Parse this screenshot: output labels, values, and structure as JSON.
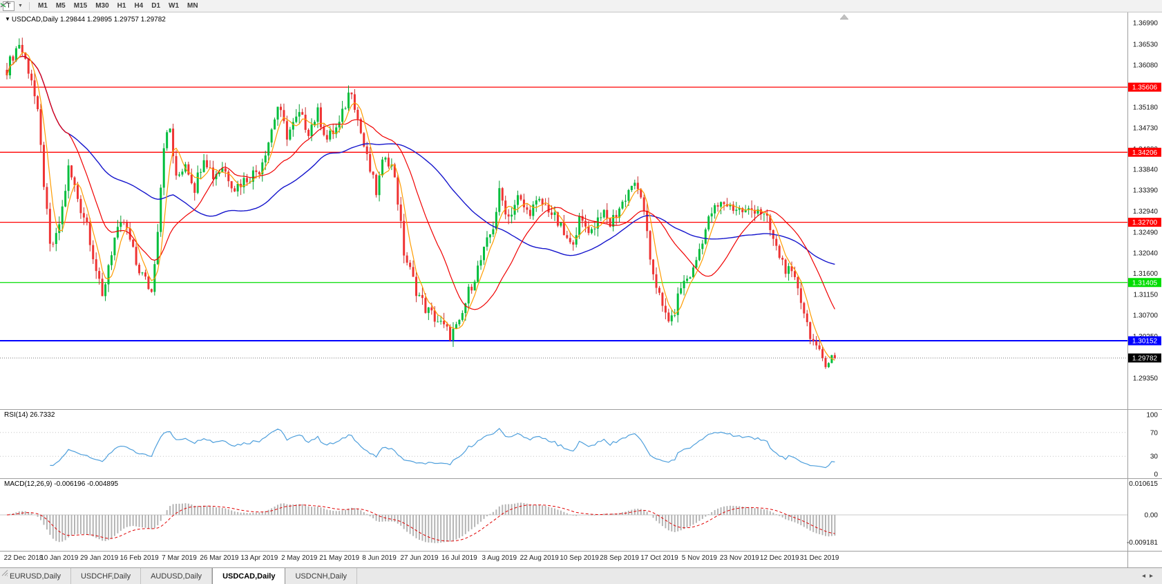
{
  "toolbar": {
    "text_tool_label": "T",
    "timeframes": [
      "M1",
      "M5",
      "M15",
      "M30",
      "H1",
      "H4",
      "D1",
      "W1",
      "MN"
    ]
  },
  "chart_header": {
    "dropdown_glyph": "▼",
    "symbol_title": "USDCAD,Daily",
    "ohlc_text": "1.29844 1.29895 1.29757 1.29782"
  },
  "chart_data": {
    "type": "candlestick",
    "symbol": "USDCAD",
    "timeframe": "Daily",
    "open": 1.29844,
    "high": 1.29895,
    "low": 1.29757,
    "close": 1.29782,
    "num_candles": 270,
    "close_anchors": [
      [
        0,
        1.36
      ],
      [
        2,
        1.363
      ],
      [
        4,
        1.3655
      ],
      [
        6,
        1.3618
      ],
      [
        8,
        1.358
      ],
      [
        10,
        1.35
      ],
      [
        12,
        1.3355
      ],
      [
        14,
        1.3215
      ],
      [
        16,
        1.3235
      ],
      [
        18,
        1.33
      ],
      [
        20,
        1.3385
      ],
      [
        22,
        1.3345
      ],
      [
        24,
        1.33
      ],
      [
        26,
        1.327
      ],
      [
        28,
        1.32
      ],
      [
        30,
        1.3135
      ],
      [
        31,
        1.3105
      ],
      [
        33,
        1.318
      ],
      [
        35,
        1.3235
      ],
      [
        38,
        1.327
      ],
      [
        40,
        1.323
      ],
      [
        42,
        1.318
      ],
      [
        45,
        1.3145
      ],
      [
        47,
        1.312
      ],
      [
        49,
        1.326
      ],
      [
        51,
        1.344
      ],
      [
        53,
        1.347
      ],
      [
        55,
        1.336
      ],
      [
        58,
        1.34
      ],
      [
        61,
        1.3345
      ],
      [
        64,
        1.3415
      ],
      [
        67,
        1.337
      ],
      [
        70,
        1.339
      ],
      [
        74,
        1.3345
      ],
      [
        78,
        1.3365
      ],
      [
        82,
        1.3385
      ],
      [
        85,
        1.3445
      ],
      [
        88,
        1.352
      ],
      [
        91,
        1.3458
      ],
      [
        95,
        1.35
      ],
      [
        98,
        1.3468
      ],
      [
        101,
        1.3505
      ],
      [
        104,
        1.3448
      ],
      [
        108,
        1.348
      ],
      [
        111,
        1.3545
      ],
      [
        112,
        1.3558
      ],
      [
        114,
        1.3492
      ],
      [
        117,
        1.3405
      ],
      [
        120,
        1.3335
      ],
      [
        123,
        1.342
      ],
      [
        126,
        1.3372
      ],
      [
        129,
        1.3205
      ],
      [
        133,
        1.3125
      ],
      [
        136,
        1.3085
      ],
      [
        140,
        1.3058
      ],
      [
        144,
        1.3028
      ],
      [
        147,
        1.3048
      ],
      [
        150,
        1.312
      ],
      [
        154,
        1.3188
      ],
      [
        158,
        1.3262
      ],
      [
        160,
        1.3332
      ],
      [
        163,
        1.3282
      ],
      [
        166,
        1.3322
      ],
      [
        169,
        1.3292
      ],
      [
        173,
        1.3312
      ],
      [
        176,
        1.33
      ],
      [
        180,
        1.3256
      ],
      [
        183,
        1.3218
      ],
      [
        186,
        1.3272
      ],
      [
        190,
        1.3252
      ],
      [
        193,
        1.3292
      ],
      [
        196,
        1.3266
      ],
      [
        200,
        1.3312
      ],
      [
        203,
        1.3352
      ],
      [
        206,
        1.333
      ],
      [
        209,
        1.3192
      ],
      [
        213,
        1.3082
      ],
      [
        216,
        1.3056
      ],
      [
        219,
        1.3132
      ],
      [
        223,
        1.3166
      ],
      [
        226,
        1.3236
      ],
      [
        229,
        1.3292
      ],
      [
        233,
        1.3312
      ],
      [
        236,
        1.3302
      ],
      [
        240,
        1.3292
      ],
      [
        244,
        1.3302
      ],
      [
        247,
        1.3272
      ],
      [
        250,
        1.3212
      ],
      [
        253,
        1.3172
      ],
      [
        257,
        1.3132
      ],
      [
        260,
        1.3052
      ],
      [
        263,
        1.2992
      ],
      [
        266,
        1.2972
      ],
      [
        269,
        1.29782
      ]
    ],
    "x_labels": [
      "22 Dec 2018",
      "10 Jan 2019",
      "29 Jan 2019",
      "16 Feb 2019",
      "7 Mar 2019",
      "26 Mar 2019",
      "13 Apr 2019",
      "2 May 2019",
      "21 May 2019",
      "8 Jun 2019",
      "27 Jun 2019",
      "16 Jul 2019",
      "3 Aug 2019",
      "22 Aug 2019",
      "10 Sep 2019",
      "28 Sep 2019",
      "17 Oct 2019",
      "5 Nov 2019",
      "23 Nov 2019",
      "12 Dec 2019",
      "31 Dec 2019"
    ],
    "y_ticks": [
      "1.36990",
      "1.36530",
      "1.36080",
      "1.35630",
      "1.35180",
      "1.34730",
      "1.34280",
      "1.33840",
      "1.33390",
      "1.32940",
      "1.32490",
      "1.32040",
      "1.31600",
      "1.31150",
      "1.30700",
      "1.30250",
      "1.29350"
    ],
    "levels": [
      {
        "price": 1.35606,
        "label": "1.35606",
        "color": "#FF0000"
      },
      {
        "price": 1.34206,
        "label": "1.34206",
        "color": "#FF0000"
      },
      {
        "price": 1.327,
        "label": "1.32700",
        "color": "#FF0000"
      },
      {
        "price": 1.31405,
        "label": "1.31405",
        "color": "#00DD00"
      },
      {
        "price": 1.30152,
        "label": "1.30152",
        "color": "#0000FF"
      }
    ],
    "current_price": {
      "price": 1.29782,
      "label": "1.29782",
      "color": "#000000"
    },
    "colors": {
      "bull": "#00BE3C",
      "bear": "#EF3333",
      "bull_wick": "#009E2E",
      "bear_wick": "#C82A2A",
      "ma_fast": "#FF9C00",
      "ma_mid": "#F00000",
      "ma_slow": "#1414CC",
      "rsi_line": "#4E9FDC",
      "macd_hist": "#B4B4B4",
      "macd_signal": "#E00000"
    }
  },
  "indicators": {
    "rsi": {
      "label": "RSI(14) 26.7332",
      "period": 14,
      "axis": [
        "100",
        "70",
        "30",
        "0"
      ],
      "overbought": 70,
      "oversold": 30
    },
    "macd": {
      "label": "MACD(12,26,9) -0.006196 -0.004895",
      "fast": 12,
      "slow": 26,
      "signal": 9,
      "axis": [
        "0.010615",
        "0.00",
        "-0.009181"
      ]
    }
  },
  "bottom_tabs": {
    "tabs": [
      {
        "label": "EURUSD,Daily",
        "active": false
      },
      {
        "label": "USDCHF,Daily",
        "active": false
      },
      {
        "label": "AUDUSD,Daily",
        "active": false
      },
      {
        "label": "USDCAD,Daily",
        "active": true
      },
      {
        "label": "USDCNH,Daily",
        "active": false
      }
    ],
    "scroll_left_glyph": "◂",
    "scroll_right_glyph": "▸"
  }
}
